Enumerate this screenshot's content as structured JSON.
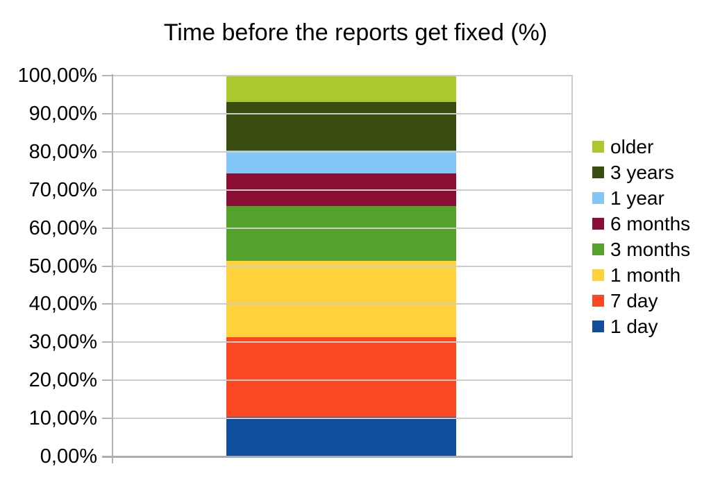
{
  "chart_data": {
    "type": "bar",
    "stacked": true,
    "orientation": "vertical",
    "title": "Time before the reports get fixed (%)",
    "xlabel": "",
    "ylabel": "",
    "categories": [
      ""
    ],
    "series": [
      {
        "name": "1 day",
        "values": [
          10.3
        ],
        "color": "#0f4e9c"
      },
      {
        "name": "7 day",
        "values": [
          21.0
        ],
        "color": "#fb4722"
      },
      {
        "name": "1 month",
        "values": [
          20.0
        ],
        "color": "#ffd23b"
      },
      {
        "name": "3 months",
        "values": [
          14.5
        ],
        "color": "#54a12c"
      },
      {
        "name": "6 months",
        "values": [
          8.6
        ],
        "color": "#8a0e34"
      },
      {
        "name": "1 year",
        "values": [
          6.0
        ],
        "color": "#83c6f8"
      },
      {
        "name": "3 years",
        "values": [
          12.7
        ],
        "color": "#3b4c11"
      },
      {
        "name": "older",
        "values": [
          6.9
        ],
        "color": "#a9c92f"
      }
    ],
    "ylim": [
      0,
      100
    ],
    "y_tick_step": 10,
    "y_tick_labels": [
      "0,00%",
      "10,00%",
      "20,00%",
      "30,00%",
      "40,00%",
      "50,00%",
      "60,00%",
      "70,00%",
      "80,00%",
      "90,00%",
      "100,00%"
    ],
    "value_format": "percent-comma",
    "grid": true,
    "legend": {
      "position": "right",
      "entries_top_to_bottom": [
        {
          "label": "older",
          "color": "#a9c92f"
        },
        {
          "label": "3 years",
          "color": "#3b4c11"
        },
        {
          "label": "1 year",
          "color": "#83c6f8"
        },
        {
          "label": "6 months",
          "color": "#8a0e34"
        },
        {
          "label": "3 months",
          "color": "#54a12c"
        },
        {
          "label": "1 month",
          "color": "#ffd23b"
        },
        {
          "label": "7 day",
          "color": "#fb4722"
        },
        {
          "label": "1 day",
          "color": "#0f4e9c"
        }
      ]
    },
    "colors": {
      "gridline": "#cccccc",
      "axis": "#b2b2b2",
      "background": "#ffffff",
      "text": "#000000"
    }
  }
}
